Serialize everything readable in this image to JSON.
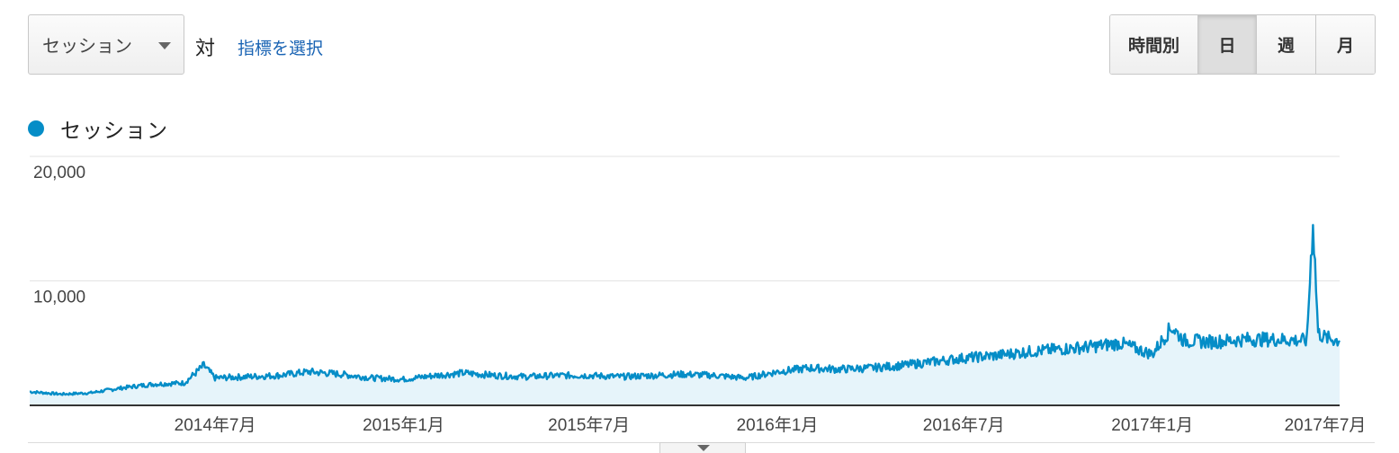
{
  "controls": {
    "metric_select": "セッション",
    "vs_label": "対",
    "select_metric_link": "指標を選択",
    "granularity": [
      {
        "label": "時間別",
        "active": false
      },
      {
        "label": "日",
        "active": true
      },
      {
        "label": "週",
        "active": false
      },
      {
        "label": "月",
        "active": false
      }
    ]
  },
  "colors": {
    "line": "#058dc7",
    "area": "#e6f4fa",
    "grid": "#e3e3e3",
    "axis": "#333333"
  },
  "icons": {
    "dropdown": "caret-down-icon",
    "legend": "legend-dot-icon",
    "collapse": "caret-down-icon"
  },
  "chart_data": {
    "type": "area",
    "title": "",
    "xlabel": "",
    "ylabel": "",
    "legend": {
      "position": "top-left",
      "entries": [
        "セッション"
      ]
    },
    "grid": true,
    "ylim": [
      0,
      20000
    ],
    "y_ticks": [
      {
        "value": 10000,
        "label": "10,000"
      },
      {
        "value": 20000,
        "label": "20,000"
      }
    ],
    "xlim": [
      "2014-01-01",
      "2017-07-03"
    ],
    "x_ticks": [
      {
        "date": "2014-07-01",
        "label": "2014年7月"
      },
      {
        "date": "2015-01-01",
        "label": "2015年1月"
      },
      {
        "date": "2015-07-01",
        "label": "2015年7月"
      },
      {
        "date": "2016-01-01",
        "label": "2016年1月"
      },
      {
        "date": "2016-07-01",
        "label": "2016年7月"
      },
      {
        "date": "2017-01-01",
        "label": "2017年1月"
      },
      {
        "date": "2017-07-01",
        "label": "2017年7月"
      }
    ],
    "series": [
      {
        "name": "セッション",
        "points": [
          [
            "2014-01-01",
            1100
          ],
          [
            "2014-02-01",
            900
          ],
          [
            "2014-03-01",
            1000
          ],
          [
            "2014-04-01",
            1400
          ],
          [
            "2014-05-01",
            1700
          ],
          [
            "2014-06-01",
            1800
          ],
          [
            "2014-06-20",
            3200
          ],
          [
            "2014-07-01",
            2200
          ],
          [
            "2014-08-01",
            2300
          ],
          [
            "2014-09-01",
            2400
          ],
          [
            "2014-10-01",
            2700
          ],
          [
            "2014-11-01",
            2500
          ],
          [
            "2014-12-01",
            2200
          ],
          [
            "2015-01-01",
            2100
          ],
          [
            "2015-02-01",
            2400
          ],
          [
            "2015-03-01",
            2600
          ],
          [
            "2015-04-01",
            2400
          ],
          [
            "2015-05-01",
            2300
          ],
          [
            "2015-06-01",
            2400
          ],
          [
            "2015-07-01",
            2400
          ],
          [
            "2015-08-01",
            2300
          ],
          [
            "2015-09-01",
            2400
          ],
          [
            "2015-10-01",
            2500
          ],
          [
            "2015-11-01",
            2400
          ],
          [
            "2015-12-01",
            2200
          ],
          [
            "2016-01-01",
            2700
          ],
          [
            "2016-02-01",
            3000
          ],
          [
            "2016-03-01",
            2900
          ],
          [
            "2016-04-01",
            3000
          ],
          [
            "2016-05-01",
            3200
          ],
          [
            "2016-06-01",
            3500
          ],
          [
            "2016-07-01",
            3800
          ],
          [
            "2016-08-01",
            4000
          ],
          [
            "2016-09-01",
            4300
          ],
          [
            "2016-10-01",
            4500
          ],
          [
            "2016-11-01",
            4700
          ],
          [
            "2016-12-01",
            5000
          ],
          [
            "2017-01-01",
            4100
          ],
          [
            "2017-01-20",
            6300
          ],
          [
            "2017-02-01",
            5200
          ],
          [
            "2017-03-01",
            5100
          ],
          [
            "2017-04-01",
            5300
          ],
          [
            "2017-05-01",
            5300
          ],
          [
            "2017-06-01",
            5200
          ],
          [
            "2017-06-07",
            15000
          ],
          [
            "2017-06-12",
            5800
          ],
          [
            "2017-06-20",
            5400
          ],
          [
            "2017-07-03",
            5200
          ]
        ]
      }
    ]
  }
}
